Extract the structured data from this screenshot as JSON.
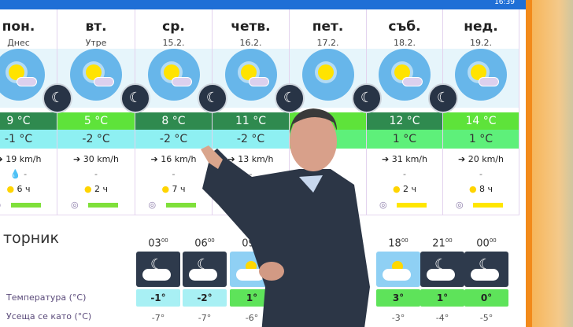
{
  "topbar": {
    "time": "16:39"
  },
  "days": [
    {
      "name": "пон.",
      "sub": "Днес",
      "hi": "9 °C",
      "lo": "-1 °C",
      "wind": "19 km/h",
      "precip": "💧 -",
      "sun": "6 ч",
      "hi_color": "#2f8a4f",
      "lo_color": "#8ef0f2",
      "uv_color": "#7fe03a"
    },
    {
      "name": "вт.",
      "sub": "Утре",
      "hi": "5 °C",
      "lo": "-2 °C",
      "wind": "30 km/h",
      "precip": "-",
      "sun": "2 ч",
      "hi_color": "#5ee33a",
      "lo_color": "#8ef0f2",
      "uv_color": "#7fe03a"
    },
    {
      "name": "ср.",
      "sub": "15.2.",
      "hi": "8 °C",
      "lo": "-2 °C",
      "wind": "16 km/h",
      "precip": "-",
      "sun": "7 ч",
      "hi_color": "#2f8a4f",
      "lo_color": "#8ef0f2",
      "uv_color": "#7fe03a"
    },
    {
      "name": "четв.",
      "sub": "16.2.",
      "hi": "11 °C",
      "lo": "-2 °C",
      "wind": "13 km/h",
      "precip": "-",
      "sun": "",
      "hi_color": "#2f8a4f",
      "lo_color": "#8ef0f2",
      "uv_color": "#7fe03a"
    },
    {
      "name": "пет.",
      "sub": "17.2.",
      "hi": "",
      "lo": "",
      "wind": "",
      "precip": "",
      "sun": "",
      "hi_color": "#5ee33a",
      "lo_color": "#5ef07a",
      "uv_color": "#7fe03a"
    },
    {
      "name": "съб.",
      "sub": "18.2.",
      "hi": "12 °C",
      "lo": "1 °C",
      "wind": "31 km/h",
      "precip": "-",
      "sun": "2 ч",
      "hi_color": "#2f8a4f",
      "lo_color": "#5ef07a",
      "uv_color": "#ffe600"
    },
    {
      "name": "нед.",
      "sub": "19.2.",
      "hi": "14 °C",
      "lo": "1 °C",
      "wind": "20 km/h",
      "precip": "-",
      "sun": "8 ч",
      "hi_color": "#5ee33a",
      "lo_color": "#5ef07a",
      "uv_color": "#ffe600"
    }
  ],
  "hourly": {
    "title": "торник",
    "temp_label": "Температура (°C)",
    "feels_label": "Усеща се като (°C)",
    "hours": [
      {
        "h": "03",
        "m": "00",
        "kind": "night",
        "temp": "-1°",
        "feels": "-7°",
        "color": "#a8f0f4"
      },
      {
        "h": "06",
        "m": "00",
        "kind": "night",
        "temp": "-2°",
        "feels": "-7°",
        "color": "#a8f0f4"
      },
      {
        "h": "09",
        "m": "00",
        "kind": "day",
        "temp": "1°",
        "feels": "-6°",
        "color": "#5ee35a"
      },
      {
        "h": "18",
        "m": "00",
        "kind": "day",
        "temp": "3°",
        "feels": "-3°",
        "color": "#5ee35a"
      },
      {
        "h": "21",
        "m": "00",
        "kind": "night",
        "temp": "1°",
        "feels": "-4°",
        "color": "#5ee35a"
      },
      {
        "h": "00",
        "m": "00",
        "kind": "night",
        "temp": "0°",
        "feels": "-5°",
        "color": "#5ee35a"
      }
    ]
  }
}
